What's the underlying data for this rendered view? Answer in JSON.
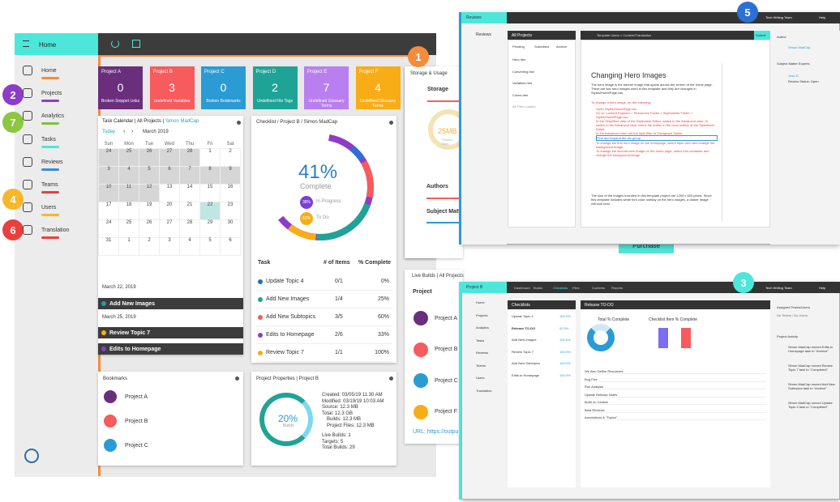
{
  "app": {
    "title": "Home",
    "brand_color": "#4de6da"
  },
  "nav": [
    {
      "label": "Home",
      "color": "#f58b3c",
      "top": 87
    },
    {
      "label": "Projects",
      "color": "#8e3cc7",
      "top": 115
    },
    {
      "label": "Analytics",
      "color": "#7fbf3f",
      "top": 143
    },
    {
      "label": "Tasks",
      "color": "#4de6da",
      "top": 172
    },
    {
      "label": "Reviews",
      "color": "#3a8fd6",
      "top": 200
    },
    {
      "label": "Teams",
      "color": "#e8403d",
      "top": 228
    },
    {
      "label": "Users",
      "color": "#f7b72a",
      "top": 256
    },
    {
      "label": "Translation",
      "color": "#e8403d",
      "top": 284
    }
  ],
  "badges": [
    "1",
    "2",
    "3",
    "4",
    "5",
    "6",
    "7"
  ],
  "projects": [
    {
      "title": "Project A",
      "count": "0",
      "label": "Broken Snippet Links",
      "color": "#6a2f7c"
    },
    {
      "title": "Project B",
      "count": "3",
      "label": "Undefined Variables",
      "color": "#f75b5d"
    },
    {
      "title": "Project C",
      "count": "0",
      "label": "Broken Bookmarks",
      "color": "#2b9bd3"
    },
    {
      "title": "Project D",
      "count": "2",
      "label": "Undefined File Tags",
      "color": "#20a397"
    },
    {
      "title": "Project E",
      "count": "7",
      "label": "Undefined Glossary Terms",
      "color": "#b97ff0"
    },
    {
      "title": "Project F",
      "count": "4",
      "label": "Undefined Glossary Terms",
      "color": "#f8ad16"
    }
  ],
  "calendar": {
    "header": "Task Calendar | All Projects | ",
    "user": "Simon MadCap",
    "today": "Today",
    "month": "March 2019",
    "days": [
      "Sun",
      "Mon",
      "Tue",
      "Wed",
      "Thu",
      "Fri",
      "Sat"
    ],
    "rows": [
      [
        "24",
        "25",
        "26",
        "27",
        "28",
        "1",
        "2"
      ],
      [
        "3",
        "4",
        "5",
        "6",
        "7",
        "8",
        "9"
      ],
      [
        "10",
        "11",
        "12",
        "13",
        "14",
        "15",
        "16"
      ],
      [
        "17",
        "18",
        "19",
        "20",
        "21",
        "22",
        "23"
      ],
      [
        "24",
        "25",
        "26",
        "27",
        "28",
        "29",
        "30"
      ],
      [
        "31",
        "1",
        "2",
        "3",
        "4",
        "5",
        "6"
      ]
    ],
    "date1": "March 22, 2019",
    "task1": "Add New Images",
    "date2": "March 25, 2019",
    "task2": "Review Topic 7",
    "task3": "Edits to Homepage"
  },
  "checklist": {
    "header": "Checklist / Project B / Simon MadCap",
    "percent": "41%",
    "complete": "Complete",
    "inprog_val": "38%",
    "inprog": "In Progress",
    "todo_val": "62%",
    "todo": "To Do",
    "cols": [
      "Task",
      "# of Items",
      "% Complete"
    ],
    "rows": [
      {
        "task": "Update Topic 4",
        "items": "0/1",
        "pct": "0%",
        "color": "#1f6fb3"
      },
      {
        "task": "Add New Images",
        "items": "1/4",
        "pct": "25%",
        "color": "#20a397"
      },
      {
        "task": "Add New Subtopics",
        "items": "3/5",
        "pct": "60%",
        "color": "#f75b5d"
      },
      {
        "task": "Edits to Homepage",
        "items": "2/6",
        "pct": "33%",
        "color": "#8e3cc7"
      },
      {
        "task": "Review Topic 7",
        "items": "1/1",
        "pct": "100%",
        "color": "#f8ad16"
      }
    ]
  },
  "storage": {
    "header": "Storage & Usage",
    "storage": "Storage",
    "gauge": "25MB",
    "gauge_sub": "Source Files",
    "authors": "Authors",
    "subject": "Subject Matte"
  },
  "purchase": "Purchase",
  "live": {
    "header": "Live Builds | All Projects",
    "col": "Project",
    "items": [
      "Project A",
      "Project B",
      "Project C",
      "Project F"
    ],
    "url": "URL: https://outpu"
  },
  "bookmarks": {
    "header": "Bookmarks",
    "items": [
      "Project A",
      "Project B",
      "Project C"
    ]
  },
  "props": {
    "header": "Project Properties | Project B",
    "pct": "20%",
    "pct_sub": "Builds",
    "lines": [
      "Created: 03/05/19 11:30 AM",
      "Modified: 03/19/19 10:03 AM",
      "Source: 12.3 MB",
      "Total: 12.3 GB"
    ],
    "sub": [
      "Builds: 12.3 MB",
      "Project Files: 12.3 MB"
    ],
    "lines2": [
      "Live Builds: 1",
      "Targets: 5",
      "Total Builds: 29"
    ]
  },
  "review": {
    "tab": "Reviews",
    "nav": "Reviews",
    "files_header": "All Projects",
    "tabs": [
      "Pending",
      "Submitted",
      "Archive"
    ],
    "files": [
      "Hero.htm",
      "Converting.htm",
      "Variables.htm",
      "Colors.htm",
      "All Files Loaded"
    ],
    "breadcrumb": "Template Users  >  Content/Translation",
    "doc_title": "Changing Hero Images",
    "intro": "The hero image is the banner image that spans across the screen of the home page. There are two hero images used in this template and they are changed in Styles/HomePage.css.",
    "steps_title": "To change a hero image, do the following:",
    "steps": [
      "Open Styles/HomePage.css",
      "Go to: Content Explorer > Resources Folder > Stylesheets Folder > Styles/HomePage.css",
      "In the Simplified view of the Stylesheet Editor, switch to the Advanced view. To switch to the Advanced view, select the button in the local toolbar of the Stylesheet Editor.",
      "In the Advanced view, set the style filter to Paragraph Styles",
      "Find and expand the div group.",
      "To change the first hero image on the homepage, select topic-hero and change the background-image.",
      "To change the second hero image on the home page, select info-container and change the background-image."
    ],
    "outro": "The size of the images included in this template project are 1200 x 600 pixels. Since this template includes white font color overlay on the hero images, a darker image will look best.",
    "submit": "Submit",
    "author_h": "Author",
    "author": "Simon MadCap",
    "sme_h": "Subject Matter Experts",
    "sme": "Jean D.",
    "sme_status": "Review Status: Open",
    "team_btn": "Tech Writing Team",
    "help": "Help"
  },
  "analytics": {
    "project": "Project B",
    "tabs": [
      "Dashboard",
      "Builds",
      "Checklists",
      "Files",
      "Contents",
      "Reports"
    ],
    "nav": [
      "Home",
      "Projects",
      "Analytics",
      "Tasks",
      "Reviews",
      "Teams",
      "Users",
      "Translation"
    ],
    "checklists_h": "Checklists",
    "cl": [
      [
        "Update Topic 4",
        "100.0%"
      ],
      [
        "Release TO-DO",
        "92.5%"
      ],
      [
        "Add New Images",
        "100.0%"
      ],
      [
        "Review Topic 7",
        "100.0%"
      ],
      [
        "Add New Subtopics",
        "100.0%"
      ],
      [
        "Edits to Homepage",
        "100.0%"
      ]
    ],
    "release_h": "Release TO-DO",
    "total_h": "Total % Complete",
    "bar_h": "Checklist Item % Complete",
    "assigned_h": "Assigned Teams/Users",
    "assigned": "No Teams / No Users",
    "activity_h": "Project Activity",
    "activity": [
      "Simon MadCap moved Edits to Homepage task to \"Archive\"",
      "Simon MadCap moved Review Topic 7 task to \"Completed\"",
      "Simon MadCap moved Add New Subtopics task to \"Archive\"",
      "Simon MadCap moved Update Topic 4 task to \"Completed\""
    ],
    "rows": [
      "We Also Define Resources",
      "Bug Fixe",
      "Run Analysis",
      "Update Release Notes",
      "Build on Central",
      "Beta Reviews",
      "Annotations & \"Topics\""
    ],
    "team_btn": "Tech Writing Team",
    "help": "Help"
  }
}
